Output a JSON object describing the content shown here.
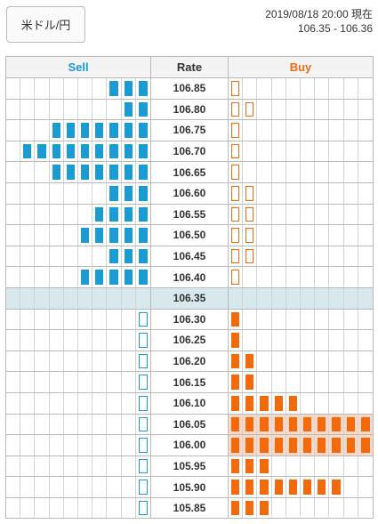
{
  "header": {
    "pair_label": "米ドル/円",
    "timestamp": "2019/08/18 20:00 現在",
    "bid_ask": "106.35 - 106.36"
  },
  "table": {
    "sell_label": "Sell",
    "rate_label": "Rate",
    "buy_label": "Buy",
    "colors": {
      "sell": "#1a9bd1",
      "buy": "#f26a0b",
      "current_row": "#d8e9ed",
      "hot_buy_row": "#f9d8c8"
    },
    "rows": [
      {
        "rate": "106.85",
        "sell": 3,
        "buy": 0
      },
      {
        "rate": "106.80",
        "sell": 2,
        "buy": 0
      },
      {
        "rate": "106.75",
        "sell": 7,
        "buy": 0
      },
      {
        "rate": "106.70",
        "sell": 9,
        "buy": 0
      },
      {
        "rate": "106.65",
        "sell": 7,
        "buy": 0
      },
      {
        "rate": "106.60",
        "sell": 3,
        "buy": 0
      },
      {
        "rate": "106.55",
        "sell": 4,
        "buy": 0
      },
      {
        "rate": "106.50",
        "sell": 5,
        "buy": 0
      },
      {
        "rate": "106.45",
        "sell": 3,
        "buy": 0
      },
      {
        "rate": "106.40",
        "sell": 5,
        "buy": 0
      },
      {
        "rate": "106.35",
        "sell": 0,
        "buy": 0,
        "current": true
      },
      {
        "rate": "106.30",
        "sell": 0,
        "buy": 1
      },
      {
        "rate": "106.25",
        "sell": 0,
        "buy": 1
      },
      {
        "rate": "106.20",
        "sell": 0,
        "buy": 2
      },
      {
        "rate": "106.15",
        "sell": 0,
        "buy": 2
      },
      {
        "rate": "106.10",
        "sell": 0,
        "buy": 5
      },
      {
        "rate": "106.05",
        "sell": 0,
        "buy": 10,
        "hot": true
      },
      {
        "rate": "106.00",
        "sell": 0,
        "buy": 10,
        "hot": true
      },
      {
        "rate": "105.95",
        "sell": 0,
        "buy": 3
      },
      {
        "rate": "105.90",
        "sell": 0,
        "buy": 8
      },
      {
        "rate": "105.85",
        "sell": 0,
        "buy": 3
      }
    ],
    "empty_marker_counts": {
      "sell_side_below_current": 1,
      "buy_side_above_current": [
        1,
        2,
        1,
        1,
        1,
        2,
        2,
        2,
        2,
        1
      ]
    }
  }
}
